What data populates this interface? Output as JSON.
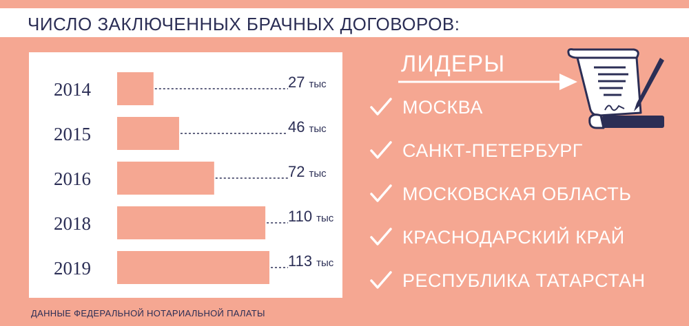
{
  "title": "ЧИСЛО ЗАКЛЮЧЕННЫХ БРАЧНЫХ ДОГОВОРОВ:",
  "source": "ДАННЫЕ ФЕДЕРАЛЬНОЙ НОТАРИАЛЬНОЙ ПАЛАТЫ",
  "leaders": {
    "title": "ЛИДЕРЫ",
    "items": [
      "МОСКВА",
      "САНКТ-ПЕТЕРБУРГ",
      "МОСКОВСКАЯ ОБЛАСТЬ",
      "КРАСНОДАРСКИЙ КРАЙ",
      "РЕСПУБЛИКА ТАТАРСТАН"
    ]
  },
  "colors": {
    "background": "#f5a792",
    "bar": "#f5a792",
    "text_dark": "#2b2e55",
    "white": "#ffffff"
  },
  "icons": {
    "checks": "checkmark-icon",
    "arrow": "arrow-right-icon",
    "document": "contract-scroll-pen-icon"
  },
  "chart_data": {
    "type": "bar",
    "orientation": "horizontal",
    "categories": [
      "2014",
      "2015",
      "2016",
      "2018",
      "2019"
    ],
    "values": [
      27,
      46,
      72,
      110,
      113
    ],
    "value_labels": [
      "27",
      "46",
      "72",
      "110",
      "113"
    ],
    "unit": "тыс",
    "title": "",
    "xlabel": "",
    "ylabel": "",
    "xlim": [
      0,
      113
    ],
    "grid": false
  }
}
